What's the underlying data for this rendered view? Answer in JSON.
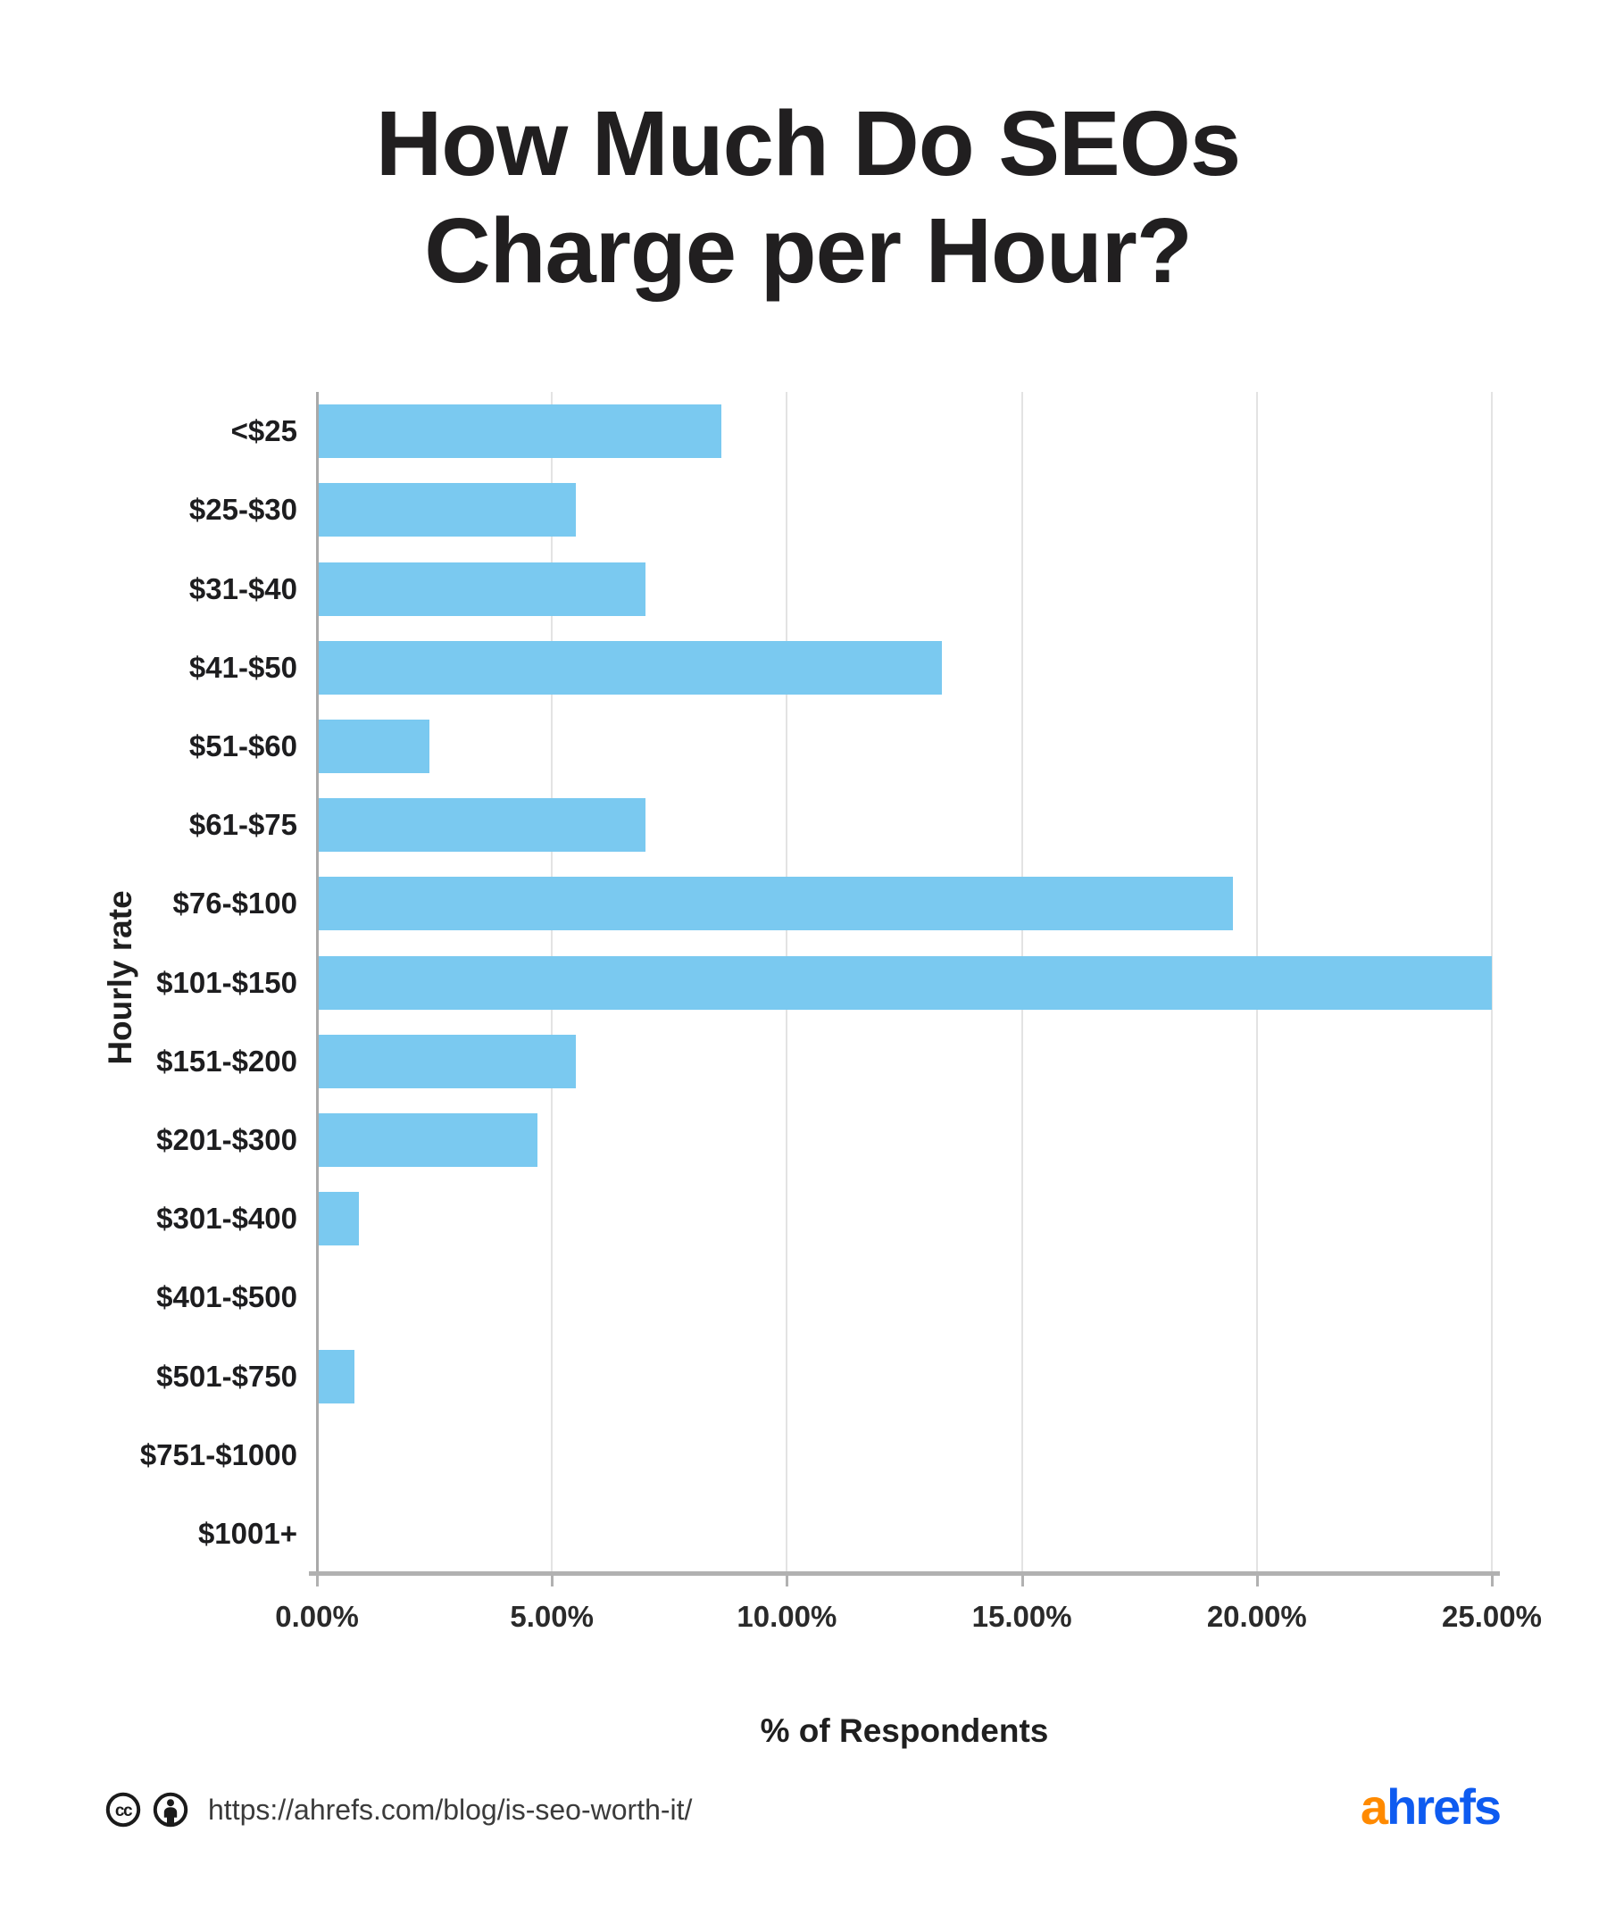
{
  "title": {
    "line1": "How Much Do SEOs",
    "line2": "Charge per Hour?"
  },
  "chart_data": {
    "type": "bar",
    "orientation": "horizontal",
    "title": "How Much Do SEOs Charge per Hour?",
    "categories": [
      "<$25",
      "$25-$30",
      "$31-$40",
      "$41-$50",
      "$51-$60",
      "$61-$75",
      "$76-$100",
      "$101-$150",
      "$151-$200",
      "$201-$300",
      "$301-$400",
      "$401-$500",
      "$501-$750",
      "$751-$1000",
      "$1001+"
    ],
    "values": [
      8.6,
      5.5,
      7.0,
      13.3,
      2.4,
      7.0,
      19.5,
      25.0,
      5.5,
      4.7,
      0.9,
      0,
      0.8,
      0,
      0
    ],
    "values_unit": "%",
    "xlabel": "% of Respondents",
    "ylabel": "Hourly rate",
    "xlim": [
      0,
      25
    ],
    "x_tick_values": [
      0,
      5,
      10,
      15,
      20,
      25
    ],
    "x_tick_labels": [
      "0.00%",
      "5.00%",
      "10.00%",
      "15.00%",
      "20.00%",
      "25.00%"
    ],
    "grid": "vertical-only",
    "legend": "none",
    "bar_color": "#7AC9F0"
  },
  "footer": {
    "license_icons": [
      "creative-commons-icon",
      "attribution-icon"
    ],
    "url": "https://ahrefs.com/blog/is-seo-worth-it/",
    "logo_prefix": "a",
    "logo_suffix": "hrefs"
  },
  "colors": {
    "bar": "#7AC9F0",
    "grid": "#E3E3E3",
    "y_axis_line": "#A9A9A9",
    "x_axis_line": "#B1B1B1",
    "text": "#1F1F1F",
    "logo_a": "#FF8A00",
    "logo_hrefs": "#0E5BF0"
  }
}
